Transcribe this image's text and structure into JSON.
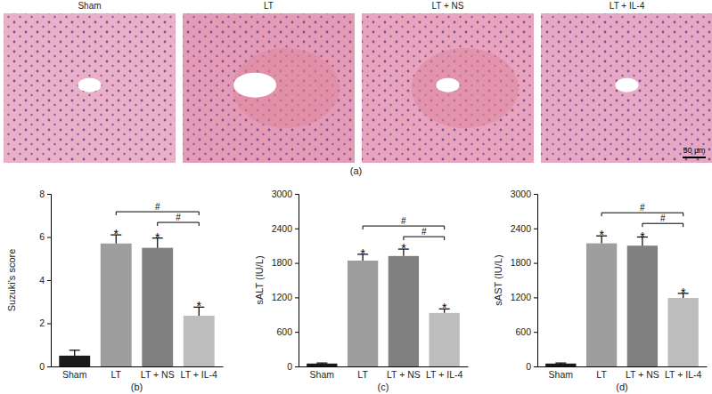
{
  "panel_a": {
    "label": "(a)",
    "titles": [
      "Sham",
      "LT",
      "LT + NS",
      "LT + IL-4"
    ],
    "scale_bar": "50 μm"
  },
  "chart_data": [
    {
      "type": "bar",
      "panel_label": "(b)",
      "y_label": "Suzuki's score",
      "categories": [
        "Sham",
        "LT",
        "LT + NS",
        "LT + IL-4"
      ],
      "values": [
        0.5,
        5.7,
        5.5,
        2.35
      ],
      "errors": [
        0.25,
        0.4,
        0.45,
        0.4
      ],
      "colors": [
        "#1a1a1a",
        "#9e9e9e",
        "#808080",
        "#bdbdbd"
      ],
      "ylim": [
        0,
        8
      ],
      "yticks": [
        0,
        2,
        4,
        6,
        8
      ],
      "significance_labels": [
        null,
        "*",
        "*",
        "*"
      ],
      "comparisons": [
        {
          "from": "LT",
          "to": "LT + IL-4",
          "label": "#"
        },
        {
          "from": "LT + NS",
          "to": "LT + IL-4",
          "label": "#"
        }
      ]
    },
    {
      "type": "bar",
      "panel_label": "(c)",
      "y_label": "sALT (IU/L)",
      "categories": [
        "Sham",
        "LT",
        "LT + NS",
        "LT + IL-4"
      ],
      "values": [
        50,
        1840,
        1920,
        930
      ],
      "errors": [
        10,
        110,
        120,
        70
      ],
      "colors": [
        "#1a1a1a",
        "#9e9e9e",
        "#808080",
        "#bdbdbd"
      ],
      "ylim": [
        0,
        3000
      ],
      "yticks": [
        0,
        600,
        1200,
        1800,
        2400,
        3000
      ],
      "significance_labels": [
        null,
        "*",
        "*",
        "*"
      ],
      "comparisons": [
        {
          "from": "LT",
          "to": "LT + IL-4",
          "label": "#"
        },
        {
          "from": "LT + NS",
          "to": "LT + IL-4",
          "label": "#"
        }
      ]
    },
    {
      "type": "bar",
      "panel_label": "(d)",
      "y_label": "sAST (IU/L)",
      "categories": [
        "Sham",
        "LT",
        "LT + NS",
        "LT + IL-4"
      ],
      "values": [
        50,
        2140,
        2100,
        1190
      ],
      "errors": [
        10,
        130,
        150,
        80
      ],
      "colors": [
        "#1a1a1a",
        "#9e9e9e",
        "#808080",
        "#bdbdbd"
      ],
      "ylim": [
        0,
        3000
      ],
      "yticks": [
        0,
        600,
        1200,
        1800,
        2400,
        3000
      ],
      "significance_labels": [
        null,
        "*",
        "*",
        "*"
      ],
      "comparisons": [
        {
          "from": "LT",
          "to": "LT + IL-4",
          "label": "#"
        },
        {
          "from": "LT + NS",
          "to": "LT + IL-4",
          "label": "#"
        }
      ]
    }
  ]
}
